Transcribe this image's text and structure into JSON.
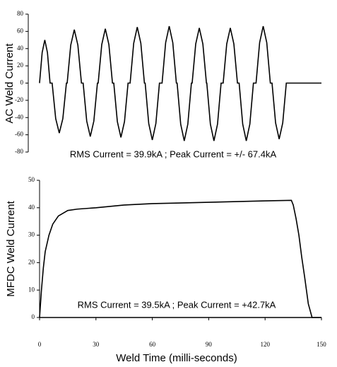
{
  "chart_data": [
    {
      "type": "line",
      "ylabel": "AC Weld Current",
      "annotation": "RMS Current = 39.9kA ; Peak Current = +/- 67.4kA",
      "color": "#000000",
      "xlim": [
        -6,
        150
      ],
      "ylim": [
        -80,
        80
      ],
      "yticks": [
        -80,
        -60,
        -40,
        -20,
        0,
        20,
        40,
        60,
        80
      ],
      "x": [
        0,
        1.4,
        2.8,
        4.2,
        5.6,
        6.7,
        8.6,
        10.5,
        12.4,
        14.3,
        14.7,
        16.6,
        18.5,
        20.4,
        22.3,
        23.2,
        25.1,
        27,
        28.9,
        30.8,
        31.2,
        33.1,
        35,
        36.9,
        38.8,
        39.5,
        41.4,
        43.3,
        45.2,
        47.1,
        48.2,
        50.1,
        52,
        53.9,
        55.8,
        56.2,
        58.1,
        60,
        61.9,
        63.8,
        65.2,
        67.1,
        69,
        70.9,
        72.8,
        73.2,
        75.1,
        77,
        78.9,
        80.8,
        81.2,
        83.1,
        85,
        86.9,
        88.8,
        89,
        90.9,
        92.8,
        94.7,
        96.6,
        97.7,
        99.6,
        101.5,
        103.4,
        105.3,
        106.2,
        108.1,
        110,
        111.9,
        113.8,
        115.2,
        117.1,
        119,
        120.9,
        122.8,
        123.7,
        125.6,
        127.5,
        129.4,
        131.3,
        150
      ],
      "values": [
        0,
        35.5,
        50,
        35.5,
        0,
        0,
        -41.2,
        -58,
        -41.2,
        0,
        0,
        44,
        62,
        44,
        0,
        0,
        -44,
        -62,
        -44,
        0,
        0,
        44.7,
        63,
        44.7,
        0,
        0,
        -44.7,
        -63,
        -44.7,
        0,
        0,
        46.2,
        65,
        46.2,
        0,
        0,
        -46.9,
        -66,
        -46.9,
        0,
        0,
        46.9,
        66,
        46.9,
        0,
        0,
        -47.6,
        -67,
        -47.6,
        0,
        0,
        45.4,
        64,
        45.4,
        0,
        0,
        -47.6,
        -67,
        -47.6,
        0,
        0,
        45.4,
        64,
        45.4,
        0,
        0,
        -47.6,
        -67,
        -47.6,
        0,
        0,
        46.9,
        66,
        46.9,
        0,
        0,
        -46.2,
        -65,
        -46.2,
        0,
        0
      ]
    },
    {
      "type": "line",
      "ylabel": "MFDC Weld Current",
      "xlabel": "Weld Time (milli-seconds)",
      "annotation": "RMS Current = 39.5kA ; Peak Current = +42.7kA",
      "color": "#000000",
      "xlim": [
        0,
        150
      ],
      "xticks": [
        0,
        30,
        60,
        90,
        120,
        150
      ],
      "ylim": [
        0,
        50
      ],
      "yticks": [
        0,
        10,
        20,
        30,
        40,
        50
      ],
      "x": [
        0,
        1,
        2,
        3,
        5,
        7,
        10,
        15,
        20,
        30,
        45,
        60,
        90,
        120,
        134,
        135,
        136.5,
        138,
        139.5,
        141,
        143,
        145,
        150
      ],
      "values": [
        0,
        10,
        18,
        24,
        30,
        34,
        37,
        39,
        39.5,
        40,
        41,
        41.5,
        42,
        42.5,
        42.7,
        41,
        36,
        30,
        22,
        15,
        5,
        0,
        0
      ]
    }
  ]
}
